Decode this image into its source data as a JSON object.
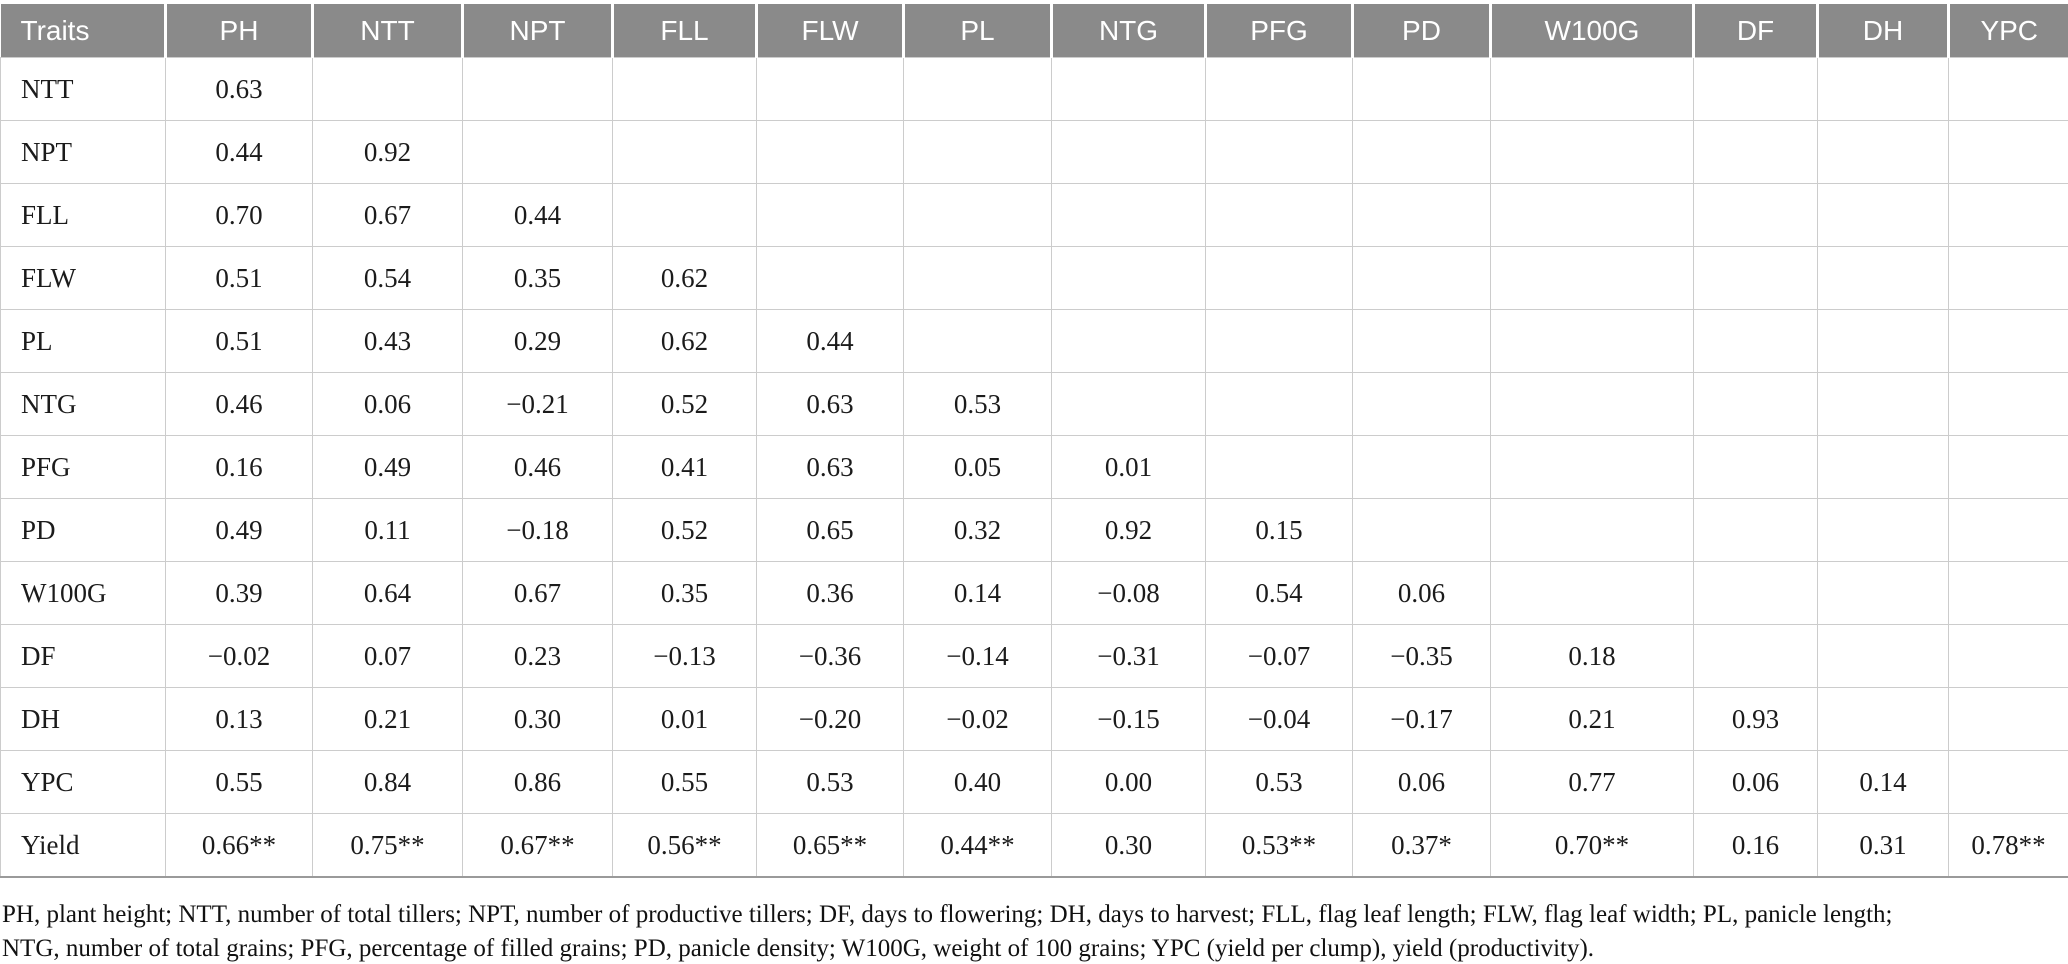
{
  "table": {
    "columns": [
      "Traits",
      "PH",
      "NTT",
      "NPT",
      "FLL",
      "FLW",
      "PL",
      "NTG",
      "PFG",
      "PD",
      "W100G",
      "DF",
      "DH",
      "YPC"
    ],
    "rows": [
      {
        "label": "NTT",
        "values": [
          "0.63",
          "",
          "",
          "",
          "",
          "",
          "",
          "",
          "",
          "",
          "",
          "",
          ""
        ]
      },
      {
        "label": "NPT",
        "values": [
          "0.44",
          "0.92",
          "",
          "",
          "",
          "",
          "",
          "",
          "",
          "",
          "",
          "",
          ""
        ]
      },
      {
        "label": "FLL",
        "values": [
          "0.70",
          "0.67",
          "0.44",
          "",
          "",
          "",
          "",
          "",
          "",
          "",
          "",
          "",
          ""
        ]
      },
      {
        "label": "FLW",
        "values": [
          "0.51",
          "0.54",
          "0.35",
          "0.62",
          "",
          "",
          "",
          "",
          "",
          "",
          "",
          "",
          ""
        ]
      },
      {
        "label": "PL",
        "values": [
          "0.51",
          "0.43",
          "0.29",
          "0.62",
          "0.44",
          "",
          "",
          "",
          "",
          "",
          "",
          "",
          ""
        ]
      },
      {
        "label": "NTG",
        "values": [
          "0.46",
          "0.06",
          "−0.21",
          "0.52",
          "0.63",
          "0.53",
          "",
          "",
          "",
          "",
          "",
          "",
          ""
        ]
      },
      {
        "label": "PFG",
        "values": [
          "0.16",
          "0.49",
          "0.46",
          "0.41",
          "0.63",
          "0.05",
          "0.01",
          "",
          "",
          "",
          "",
          "",
          ""
        ]
      },
      {
        "label": "PD",
        "values": [
          "0.49",
          "0.11",
          "−0.18",
          "0.52",
          "0.65",
          "0.32",
          "0.92",
          "0.15",
          "",
          "",
          "",
          "",
          ""
        ]
      },
      {
        "label": "W100G",
        "values": [
          "0.39",
          "0.64",
          "0.67",
          "0.35",
          "0.36",
          "0.14",
          "−0.08",
          "0.54",
          "0.06",
          "",
          "",
          "",
          ""
        ]
      },
      {
        "label": "DF",
        "values": [
          "−0.02",
          "0.07",
          "0.23",
          "−0.13",
          "−0.36",
          "−0.14",
          "−0.31",
          "−0.07",
          "−0.35",
          "0.18",
          "",
          "",
          ""
        ]
      },
      {
        "label": "DH",
        "values": [
          "0.13",
          "0.21",
          "0.30",
          "0.01",
          "−0.20",
          "−0.02",
          "−0.15",
          "−0.04",
          "−0.17",
          "0.21",
          "0.93",
          "",
          ""
        ]
      },
      {
        "label": "YPC",
        "values": [
          "0.55",
          "0.84",
          "0.86",
          "0.55",
          "0.53",
          "0.40",
          "0.00",
          "0.53",
          "0.06",
          "0.77",
          "0.06",
          "0.14",
          ""
        ]
      },
      {
        "label": "Yield",
        "values": [
          "0.66**",
          "0.75**",
          "0.67**",
          "0.56**",
          "0.65**",
          "0.44**",
          "0.30",
          "0.53**",
          "0.37*",
          "0.70**",
          "0.16",
          "0.31",
          "0.78**"
        ]
      }
    ]
  },
  "footnote": {
    "line1": "PH, plant height; NTT, number of total tillers; NPT, number of productive tillers; DF, days to flowering; DH, days to harvest; FLL, flag leaf length; FLW, flag leaf width; PL, panicle length;",
    "line2": "NTG, number of total grains; PFG, percentage of filled grains; PD, panicle density; W100G, weight of 100 grains; YPC (yield per clump), yield (productivity)."
  },
  "colors": {
    "header_bg": "#8a8a8a",
    "header_text": "#ffffff",
    "cell_border": "#cccccc",
    "body_text": "#1b1b1b"
  }
}
